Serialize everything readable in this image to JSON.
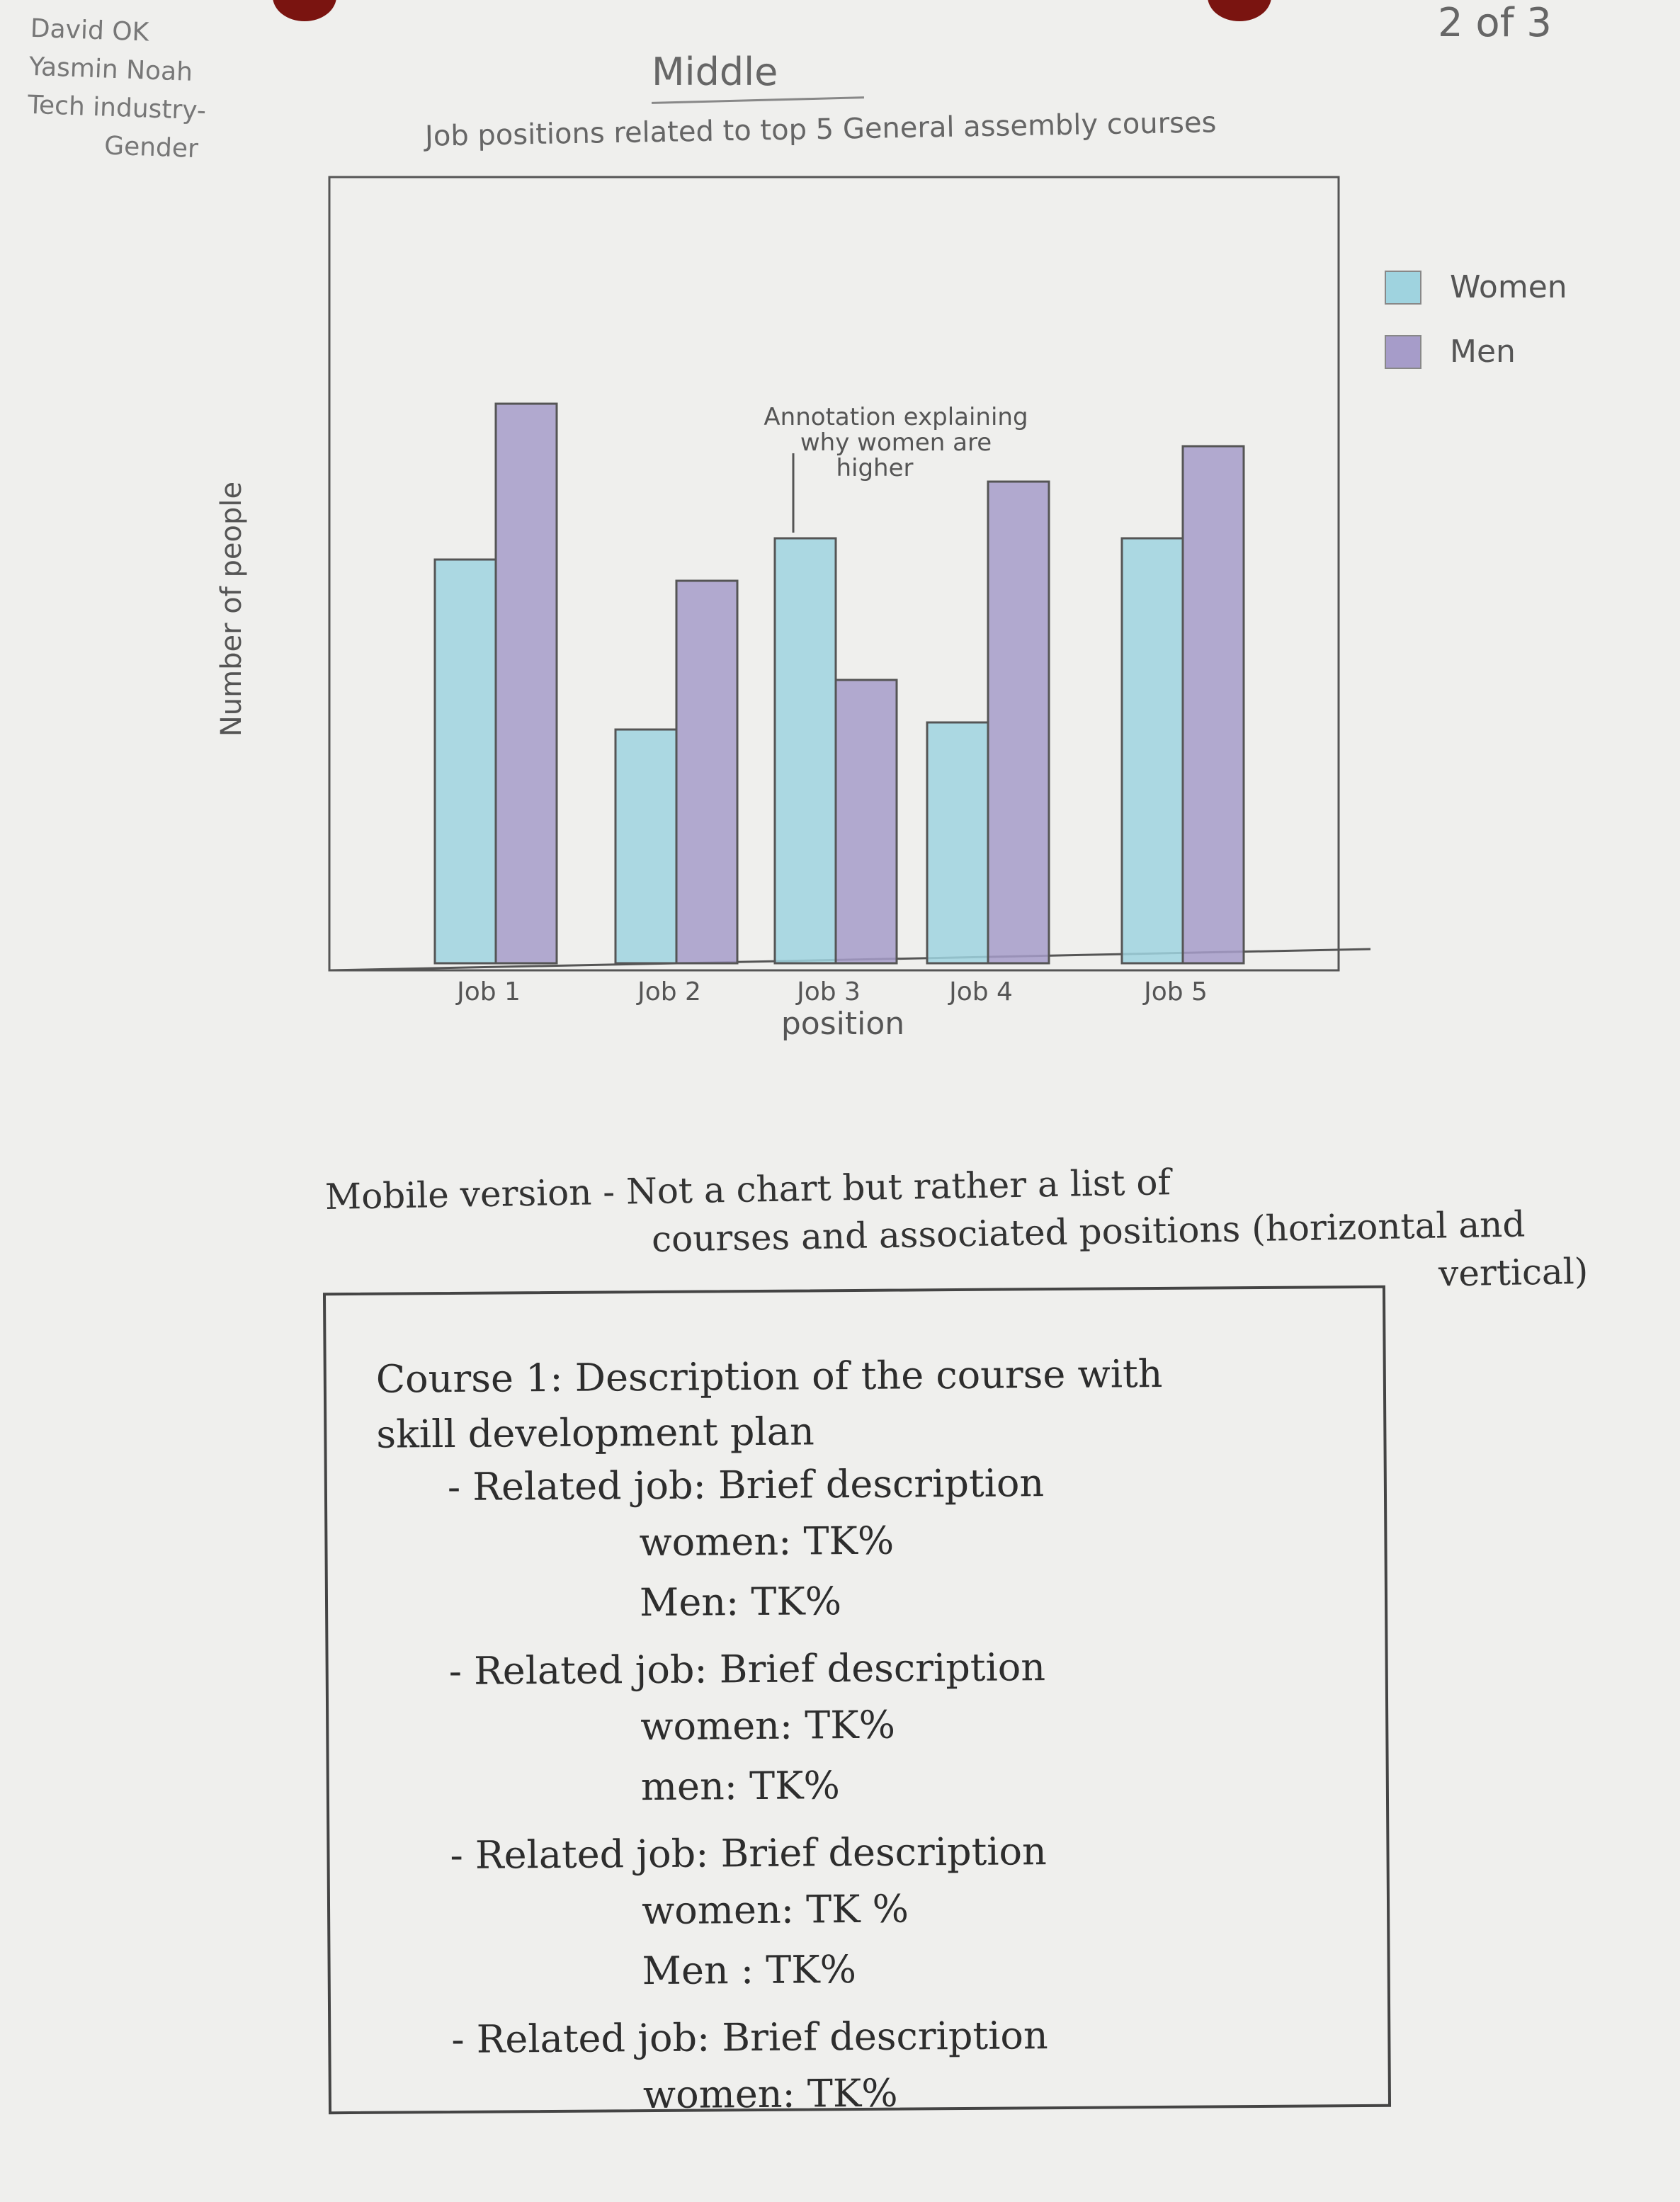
{
  "corner_note": [
    "David OK",
    "Yasmin Noah",
    "Tech industry-",
    "Gender"
  ],
  "page_number": "2 of 3",
  "sketch_title": "Middle",
  "subtitle": "Job positions related to top 5 General assembly courses",
  "chart_data": {
    "type": "bar",
    "title": "",
    "xlabel": "position",
    "ylabel": "Number of people",
    "categories": [
      "Job 1",
      "Job 2",
      "Job 3",
      "Job 4",
      "Job 5"
    ],
    "series": [
      {
        "name": "Women",
        "color": "#9fd3df",
        "values": [
          57,
          33,
          60,
          34,
          60
        ]
      },
      {
        "name": "Men",
        "color": "#a69cc9",
        "values": [
          79,
          54,
          40,
          68,
          73
        ]
      }
    ],
    "ylim": [
      0,
      100
    ],
    "grid": false,
    "legend": "top-right outside",
    "annotation": {
      "text": [
        "Annotation explaining",
        "why women are",
        "higher"
      ],
      "category": "Job 3",
      "series": "Women"
    }
  },
  "mobile_note": {
    "line1": "Mobile version - Not a chart but rather a list of",
    "line2": "courses and associated positions (horizontal and",
    "line3": "vertical)"
  },
  "mobile_box": {
    "course_heading": "Course 1: Description of the course with",
    "course_heading_2": "skill development plan",
    "jobs": [
      {
        "line": "- Related job: Brief description",
        "women": "women: TK%",
        "men": "Men: TK%"
      },
      {
        "line": "- Related job: Brief description",
        "women": "women: TK%",
        "men": "men: TK%"
      },
      {
        "line": "- Related job: Brief description",
        "women": "women: TK %",
        "men": "Men : TK%"
      },
      {
        "line": "- Related job: Brief description",
        "women": "women: TK%",
        "men": ""
      }
    ]
  }
}
